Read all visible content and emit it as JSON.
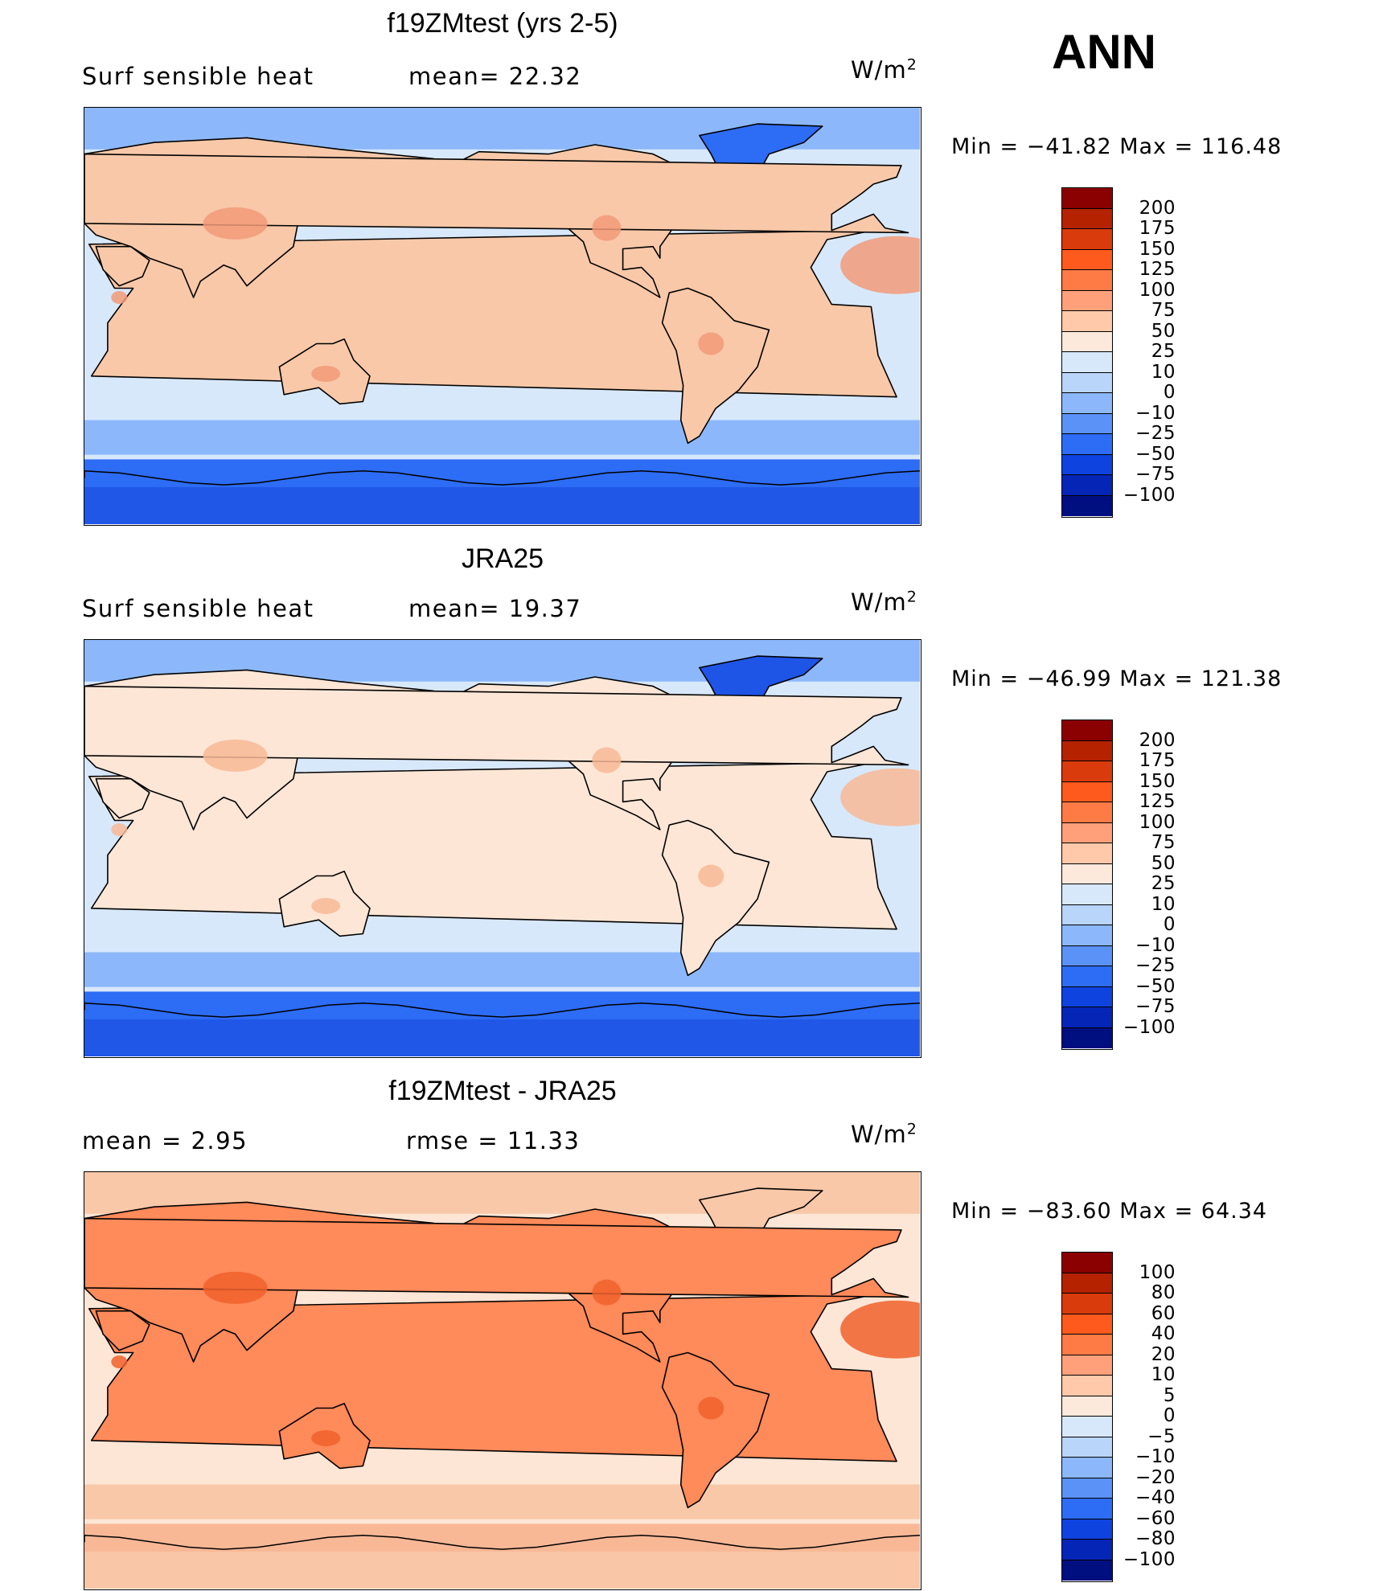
{
  "season": "ANN",
  "units_base": "W/m",
  "units_exp": "2",
  "panels": [
    {
      "title": "f19ZMtest (yrs 2-5)",
      "left_text": "Surf  sensible  heat",
      "mid_text": "mean=   22.32",
      "minmax": "Min  =  −41.82  Max  =  116.48",
      "colorbar": {
        "levels": [
          "200",
          "175",
          "150",
          "125",
          "100",
          "75",
          "50",
          "25",
          "10",
          "0",
          "−10",
          "−25",
          "−50",
          "−75",
          "−100"
        ],
        "colors": [
          "#8b0000",
          "#b42200",
          "#d93b0c",
          "#ff5a1e",
          "#ff7b45",
          "#ffa07a",
          "#ffc9aa",
          "#fde9dc",
          "#d8e8fb",
          "#b9d5fa",
          "#8cb8fb",
          "#5b92f7",
          "#2d6cf4",
          "#0f43e0",
          "#0525b6",
          "#000f80"
        ]
      },
      "field": {
        "land": "#f8c8a8",
        "land_hot": "#f29a78",
        "ocean": "#d8e8fb",
        "high_lat": "#8cb8fb",
        "polar": "#2d6cf4",
        "greenland": "#2d6cf4",
        "antarctic_ice": "#1f55e6"
      }
    },
    {
      "title": "JRA25",
      "left_text": "Surf  sensible  heat",
      "mid_text": "mean=   19.37",
      "minmax": "Min  =  −46.99  Max  =  121.38",
      "colorbar": {
        "levels": [
          "200",
          "175",
          "150",
          "125",
          "100",
          "75",
          "50",
          "25",
          "10",
          "0",
          "−10",
          "−25",
          "−50",
          "−75",
          "−100"
        ],
        "colors": [
          "#8b0000",
          "#b42200",
          "#d93b0c",
          "#ff5a1e",
          "#ff7b45",
          "#ffa07a",
          "#ffc9aa",
          "#fde9dc",
          "#d8e8fb",
          "#b9d5fa",
          "#8cb8fb",
          "#5b92f7",
          "#2d6cf4",
          "#0f43e0",
          "#0525b6",
          "#000f80"
        ]
      },
      "field": {
        "land": "#fde6d6",
        "land_hot": "#f8b896",
        "ocean": "#d8e8fb",
        "high_lat": "#8cb8fb",
        "polar": "#2d6cf4",
        "greenland": "#1f55e6",
        "antarctic_ice": "#1f55e6"
      }
    },
    {
      "title": "f19ZMtest - JRA25",
      "left_text": "mean  =     2.95",
      "mid_text": "rmse  =    11.33",
      "minmax": "Min  =  −83.60  Max  =   64.34",
      "colorbar": {
        "levels": [
          "100",
          "80",
          "60",
          "40",
          "20",
          "10",
          "5",
          "0",
          "−5",
          "−10",
          "−20",
          "−40",
          "−60",
          "−80",
          "−100"
        ],
        "colors": [
          "#8b0000",
          "#b42200",
          "#d93b0c",
          "#ff5a1e",
          "#ff7b45",
          "#ffa07a",
          "#ffc9aa",
          "#fde9dc",
          "#d8e8fb",
          "#b9d5fa",
          "#8cb8fb",
          "#5b92f7",
          "#2d6cf4",
          "#0f43e0",
          "#0525b6",
          "#000f80"
        ]
      },
      "field": {
        "land": "#ff8a5a",
        "land_hot": "#f0602c",
        "ocean": "#fde6d6",
        "high_lat": "#f8c8a8",
        "polar": "#f8b896",
        "greenland": "#f8c8a8",
        "antarctic_ice": "#f8c8a8"
      }
    }
  ]
}
